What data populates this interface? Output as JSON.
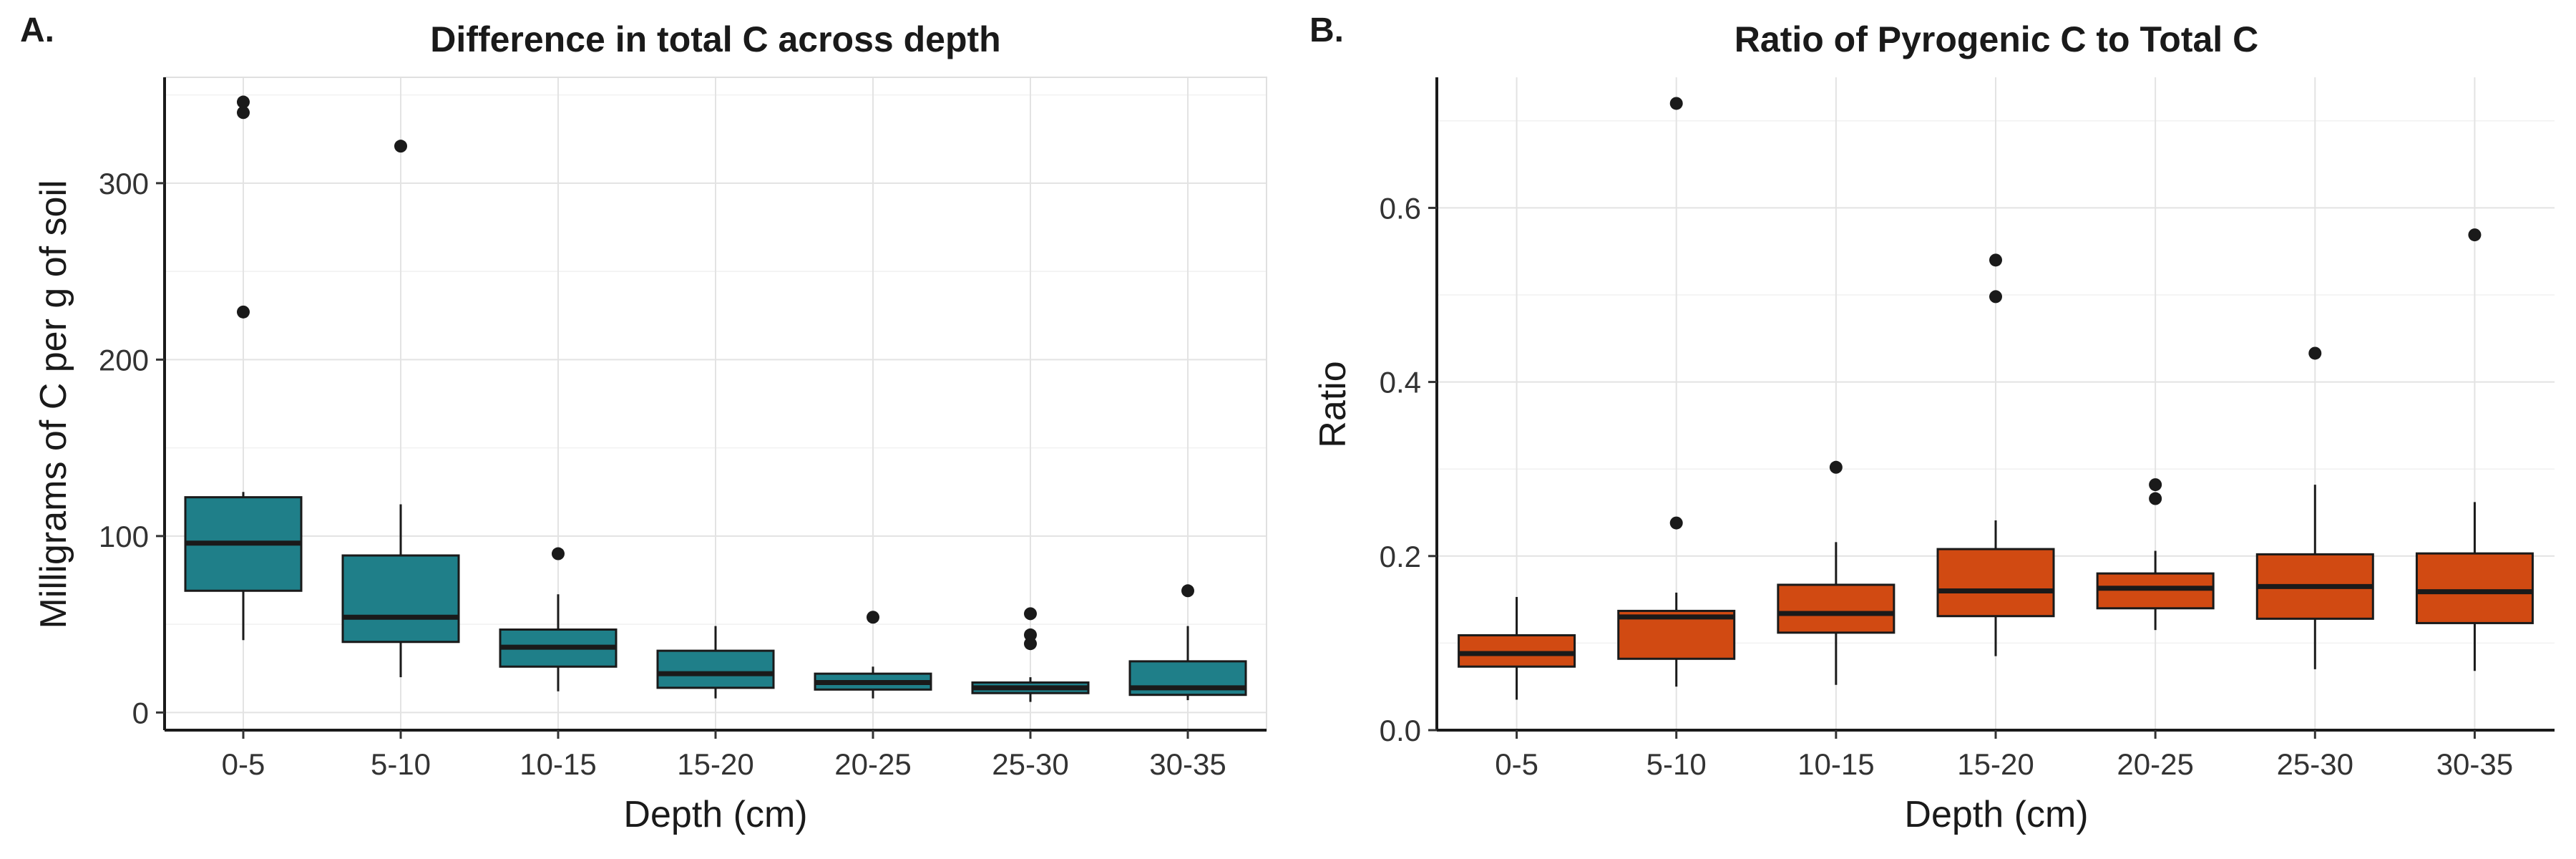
{
  "chart_data": [
    {
      "type": "box",
      "panel_label": "A.",
      "title": "Difference in total C across depth",
      "xlabel": "Depth (cm)",
      "ylabel": "Milligrams of C per g of soil",
      "ylim": [
        -10,
        360
      ],
      "y_ticks": [
        0,
        100,
        200,
        300
      ],
      "grid": true,
      "fill_color": "#1f7f89",
      "categories": [
        "0-5",
        "5-10",
        "10-15",
        "15-20",
        "20-25",
        "25-30",
        "30-35"
      ],
      "boxes": [
        {
          "lower_whisker": 41,
          "q1": 69,
          "median": 96,
          "q3": 122,
          "upper_whisker": 125,
          "outliers": [
            227,
            340,
            346
          ]
        },
        {
          "lower_whisker": 20,
          "q1": 40,
          "median": 54,
          "q3": 89,
          "upper_whisker": 118,
          "outliers": [
            321
          ]
        },
        {
          "lower_whisker": 12,
          "q1": 26,
          "median": 37,
          "q3": 47,
          "upper_whisker": 67,
          "outliers": [
            90
          ]
        },
        {
          "lower_whisker": 8,
          "q1": 14,
          "median": 22,
          "q3": 35,
          "upper_whisker": 49,
          "outliers": []
        },
        {
          "lower_whisker": 8,
          "q1": 13,
          "median": 17,
          "q3": 22,
          "upper_whisker": 26,
          "outliers": [
            54
          ]
        },
        {
          "lower_whisker": 6,
          "q1": 11,
          "median": 14,
          "q3": 17,
          "upper_whisker": 20,
          "outliers": [
            39,
            44,
            56
          ]
        },
        {
          "lower_whisker": 7,
          "q1": 10,
          "median": 14,
          "q3": 29,
          "upper_whisker": 49,
          "outliers": [
            69
          ]
        }
      ]
    },
    {
      "type": "box",
      "panel_label": "B.",
      "title": "Ratio of Pyrogenic C to Total C",
      "xlabel": "Depth (cm)",
      "ylabel": "Ratio",
      "ylim": [
        0,
        0.75
      ],
      "y_ticks": [
        0.0,
        0.2,
        0.4,
        0.6
      ],
      "grid": true,
      "fill_color": "#d14a12",
      "categories": [
        "0-5",
        "5-10",
        "10-15",
        "15-20",
        "20-25",
        "25-30",
        "30-35"
      ],
      "boxes": [
        {
          "lower_whisker": 0.035,
          "q1": 0.073,
          "median": 0.088,
          "q3": 0.109,
          "upper_whisker": 0.153,
          "outliers": []
        },
        {
          "lower_whisker": 0.05,
          "q1": 0.082,
          "median": 0.13,
          "q3": 0.137,
          "upper_whisker": 0.158,
          "outliers": [
            0.238,
            0.72
          ]
        },
        {
          "lower_whisker": 0.052,
          "q1": 0.112,
          "median": 0.134,
          "q3": 0.167,
          "upper_whisker": 0.216,
          "outliers": [
            0.302
          ]
        },
        {
          "lower_whisker": 0.085,
          "q1": 0.131,
          "median": 0.16,
          "q3": 0.208,
          "upper_whisker": 0.241,
          "outliers": [
            0.498,
            0.54
          ]
        },
        {
          "lower_whisker": 0.115,
          "q1": 0.14,
          "median": 0.163,
          "q3": 0.18,
          "upper_whisker": 0.206,
          "outliers": [
            0.266,
            0.282
          ]
        },
        {
          "lower_whisker": 0.07,
          "q1": 0.128,
          "median": 0.165,
          "q3": 0.202,
          "upper_whisker": 0.282,
          "outliers": [
            0.433
          ]
        },
        {
          "lower_whisker": 0.068,
          "q1": 0.123,
          "median": 0.159,
          "q3": 0.203,
          "upper_whisker": 0.262,
          "outliers": [
            0.569
          ]
        }
      ]
    }
  ]
}
